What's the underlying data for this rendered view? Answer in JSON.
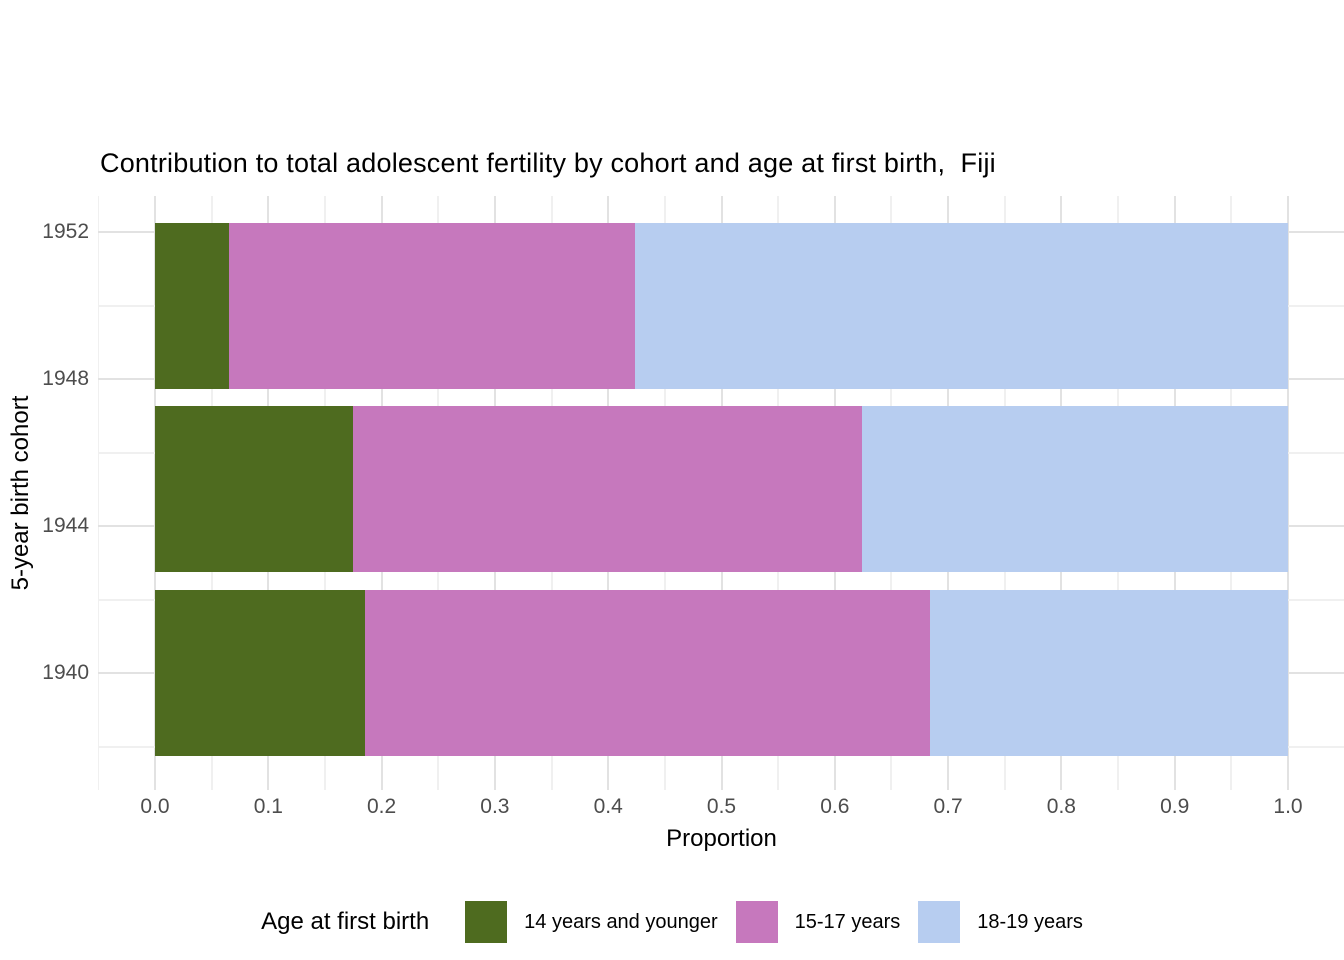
{
  "chart_data": {
    "type": "bar",
    "orientation": "horizontal-stacked",
    "title": "Contribution to total adolescent fertility by cohort and age at first birth,  Fiji",
    "xlabel": "Proportion",
    "ylabel": "5-year birth cohort",
    "legend": {
      "title": "Age at first birth",
      "position": "bottom"
    },
    "categories": [
      1950,
      1945,
      1940
    ],
    "bar_width_years": 4.5,
    "series": [
      {
        "name": "14 years and younger",
        "color": "#4e6b1f",
        "values": [
          0.065,
          0.175,
          0.185
        ]
      },
      {
        "name": "15-17 years",
        "color": "#c678bd",
        "values": [
          0.359,
          0.449,
          0.499
        ]
      },
      {
        "name": "18-19 years",
        "color": "#b7cdf0",
        "values": [
          0.576,
          0.376,
          0.316
        ]
      }
    ],
    "stack_boundaries": {
      "cohort_1950": [
        0.065,
        0.424,
        1.0
      ],
      "cohort_1945": [
        0.175,
        0.624,
        1.0
      ],
      "cohort_1940": [
        0.185,
        0.684,
        1.0
      ]
    },
    "xlim": [
      0,
      1
    ],
    "x_ticks": [
      "0.0",
      "0.1",
      "0.2",
      "0.3",
      "0.4",
      "0.5",
      "0.6",
      "0.7",
      "0.8",
      "0.9",
      "1.0"
    ],
    "y_ticks": [
      "1952",
      "1948",
      "1944",
      "1940"
    ],
    "ylim": [
      1937,
      1953
    ],
    "grid": "major+minor",
    "grid_major_color": "#e2e2e2",
    "grid_minor_color": "#f0f0f0",
    "axis_text_color": "#4d4d4d"
  }
}
